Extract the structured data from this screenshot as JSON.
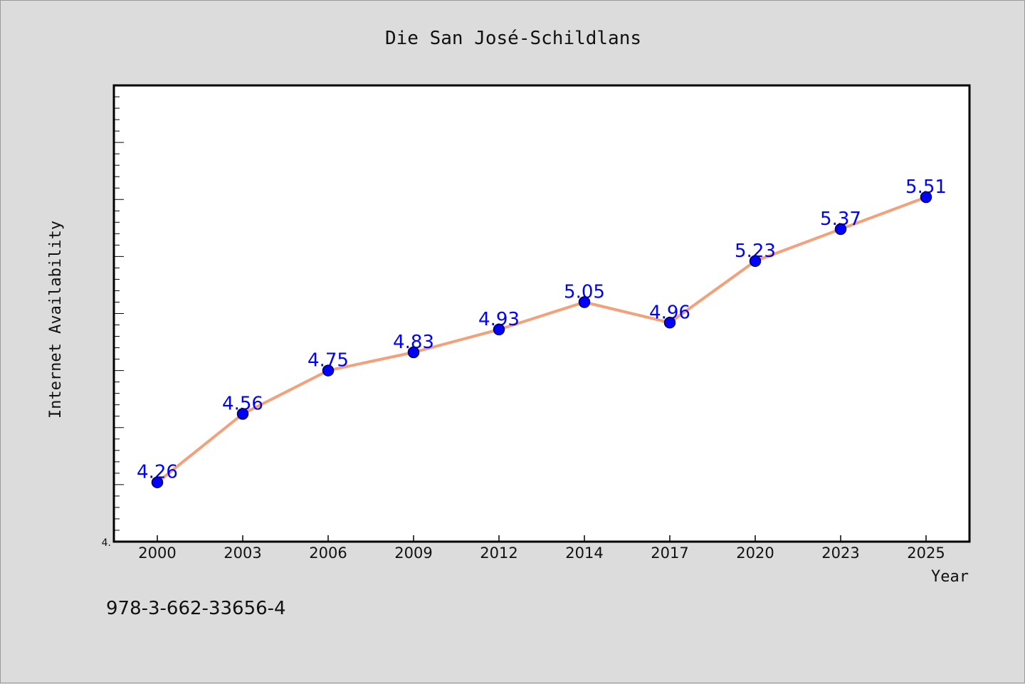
{
  "chart_data": {
    "type": "line",
    "title": "Die San José-Schildlans",
    "xlabel": "Year",
    "ylabel": "Internet Availability",
    "categories": [
      "2000",
      "2003",
      "2006",
      "2009",
      "2012",
      "2014",
      "2017",
      "2020",
      "2023",
      "2025"
    ],
    "series": [
      {
        "values": [
          4.26,
          4.56,
          4.75,
          4.83,
          4.93,
          5.05,
          4.96,
          5.23,
          5.37,
          5.51
        ],
        "data_labels": [
          "4.26",
          "4.56",
          "4.75",
          "4.83",
          "4.93",
          "5.05",
          "4.96",
          "5.23",
          "5.37",
          "5.51"
        ],
        "line_color": "#f4a07a",
        "marker_color": "#0000ff",
        "marker_edge": "#00005a"
      }
    ],
    "ylim": [
      4.0,
      6.0
    ],
    "ytick_labels": [
      "4."
    ],
    "grid": false,
    "legend": "none",
    "label_color": "#0000ff"
  },
  "footer": {
    "text": "978-3-662-33656-4"
  }
}
